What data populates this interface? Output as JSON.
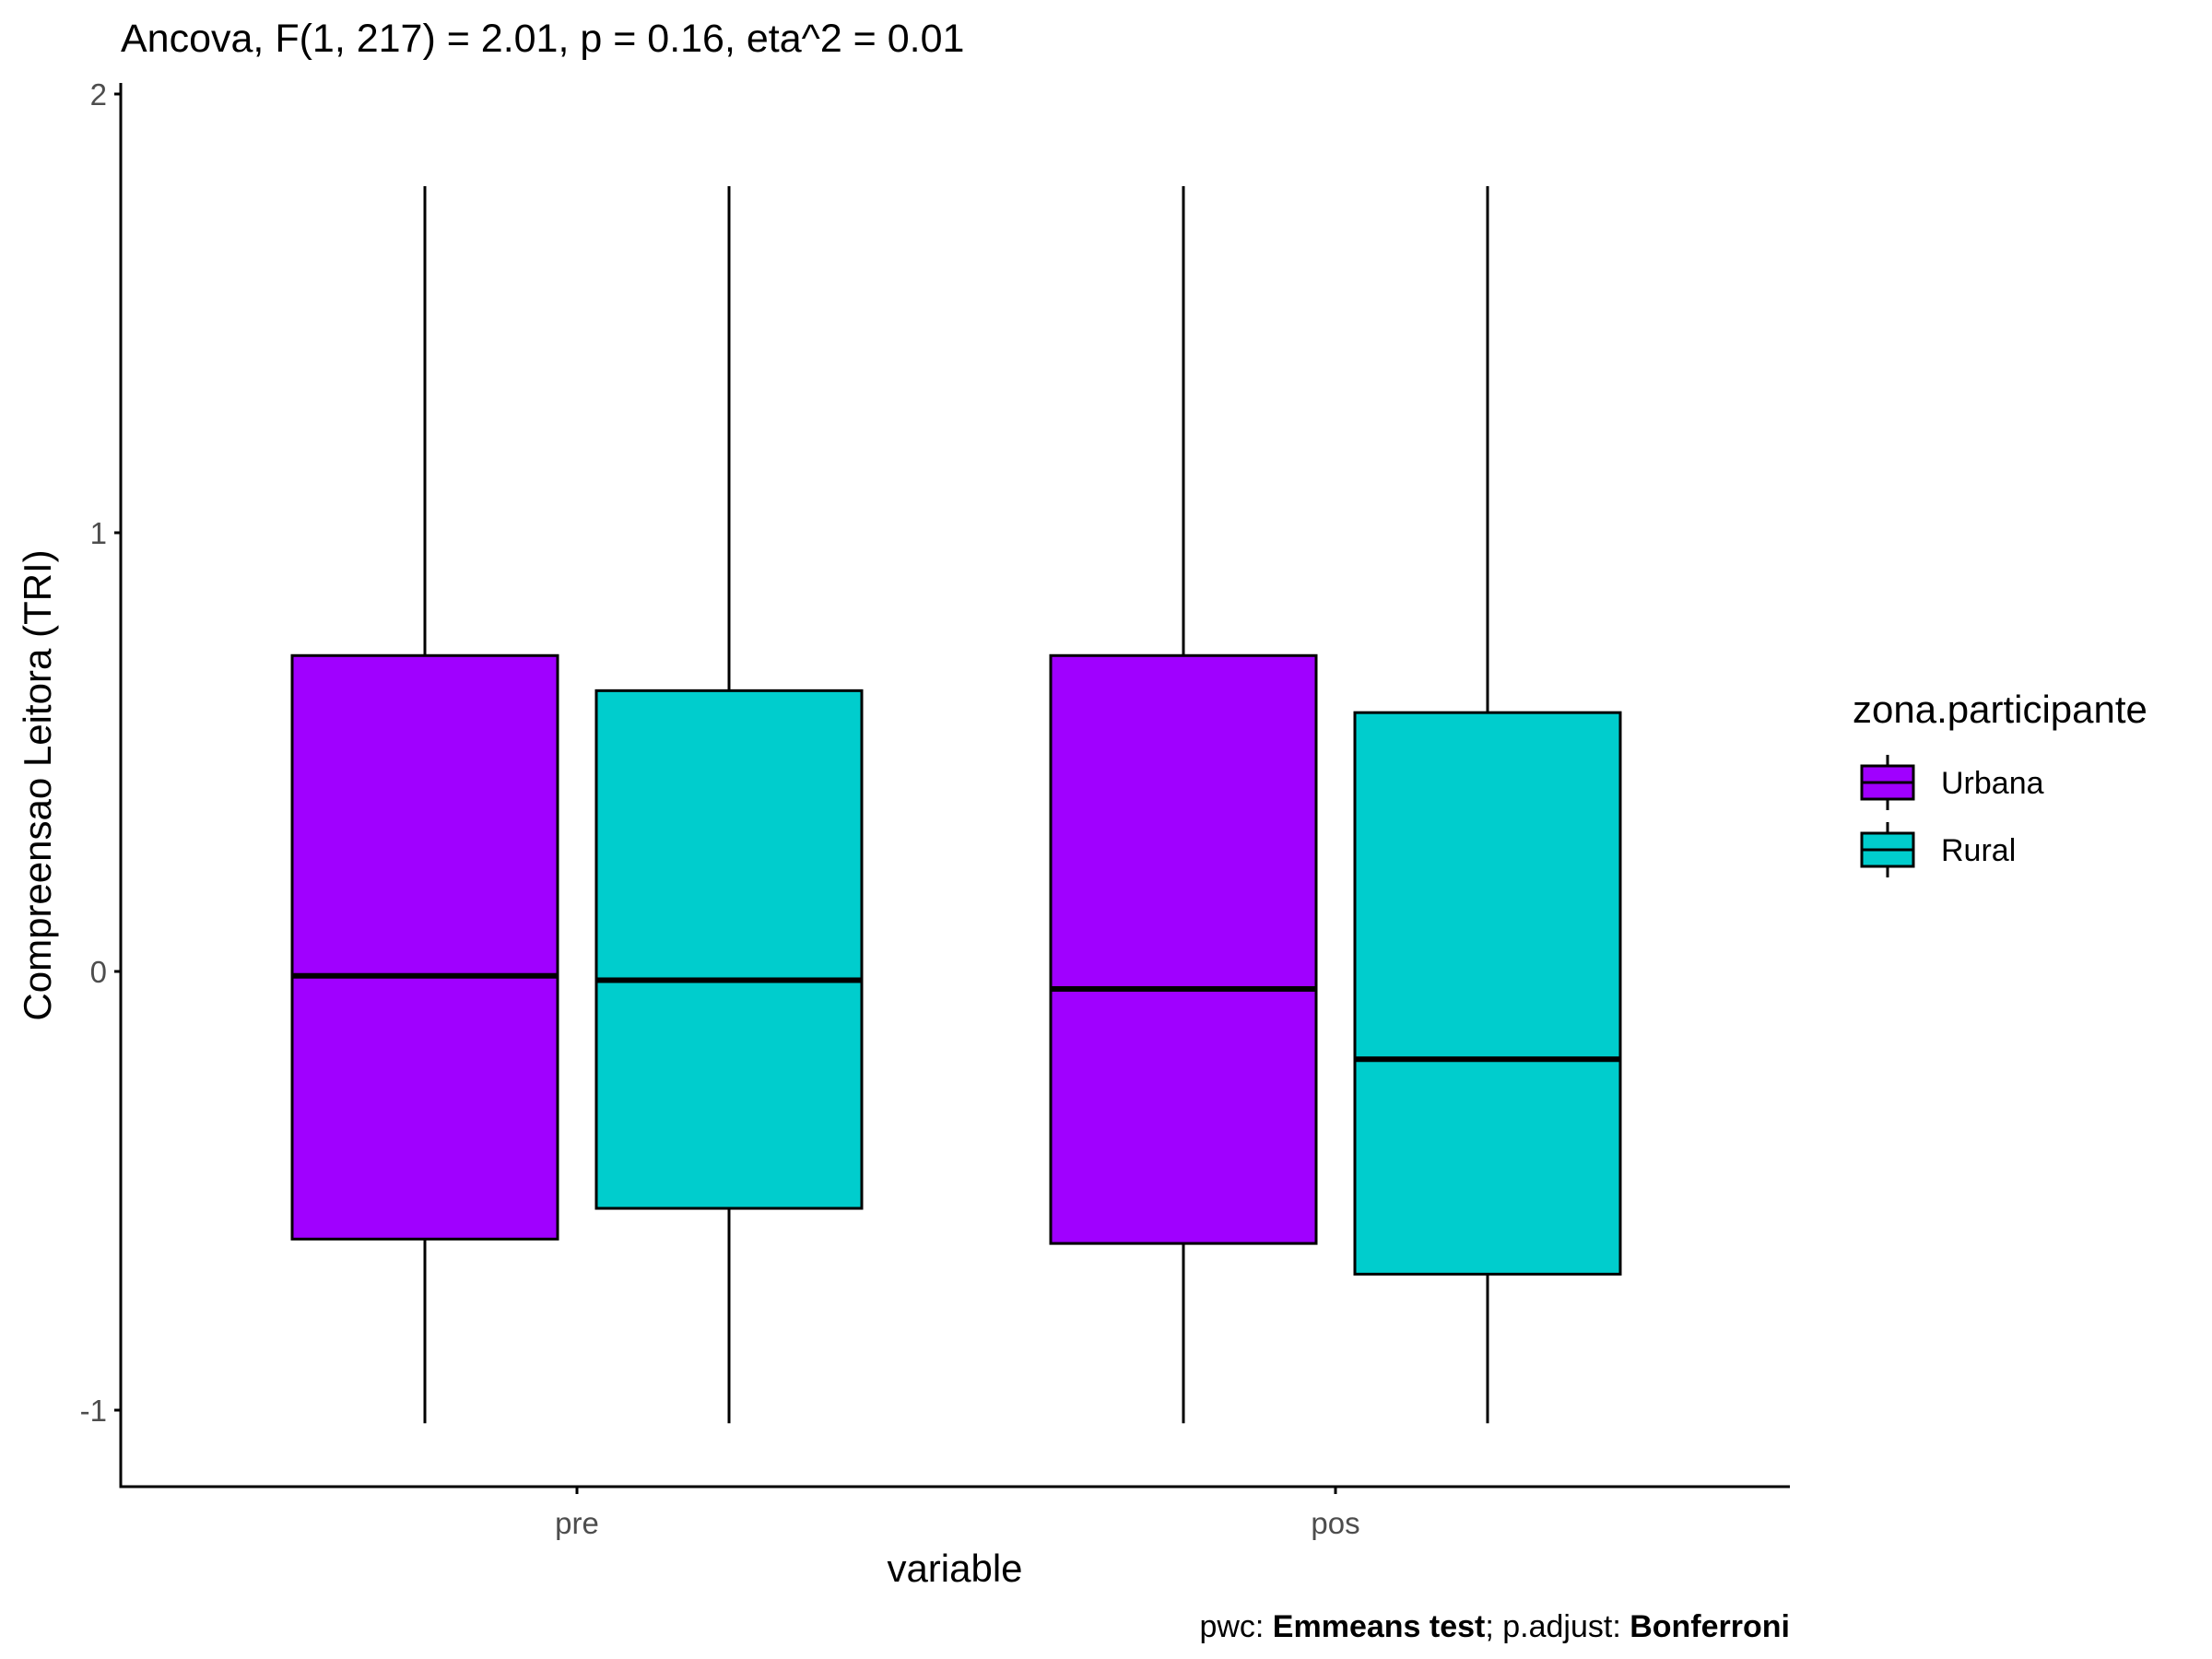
{
  "chart_data": {
    "type": "boxplot",
    "title": "Ancova, F(1, 217) = 2.01, p = 0.16, eta^2 = 0.01",
    "xlabel": "variable",
    "ylabel": "Compreensao Leitora (TRI)",
    "categories": [
      "pre",
      "pos"
    ],
    "y_ticks": [
      -1,
      0,
      1,
      2
    ],
    "y_tick_labels": [
      "-1",
      "0",
      "1",
      "2"
    ],
    "ylim": [
      -1.18,
      2.02
    ],
    "grid": false,
    "legend": {
      "title": "zona.participante",
      "position": "right"
    },
    "series": [
      {
        "name": "Urbana",
        "color": "#a000ff",
        "boxes": [
          {
            "category": "pre",
            "min": -1.03,
            "q1": -0.61,
            "median": -0.01,
            "q3": 0.72,
            "max": 1.79
          },
          {
            "category": "pos",
            "min": -1.03,
            "q1": -0.62,
            "median": -0.04,
            "q3": 0.72,
            "max": 1.79
          }
        ]
      },
      {
        "name": "Rural",
        "color": "#00cdcd",
        "boxes": [
          {
            "category": "pre",
            "min": -1.03,
            "q1": -0.54,
            "median": -0.02,
            "q3": 0.64,
            "max": 1.79
          },
          {
            "category": "pos",
            "min": -1.03,
            "q1": -0.69,
            "median": -0.2,
            "q3": 0.59,
            "max": 1.79
          }
        ]
      }
    ],
    "caption": {
      "parts": [
        {
          "text": "pwc: ",
          "bold": false
        },
        {
          "text": "Emmeans test",
          "bold": true
        },
        {
          "text": "; p.adjust: ",
          "bold": false
        },
        {
          "text": "Bonferroni",
          "bold": true
        }
      ]
    }
  }
}
